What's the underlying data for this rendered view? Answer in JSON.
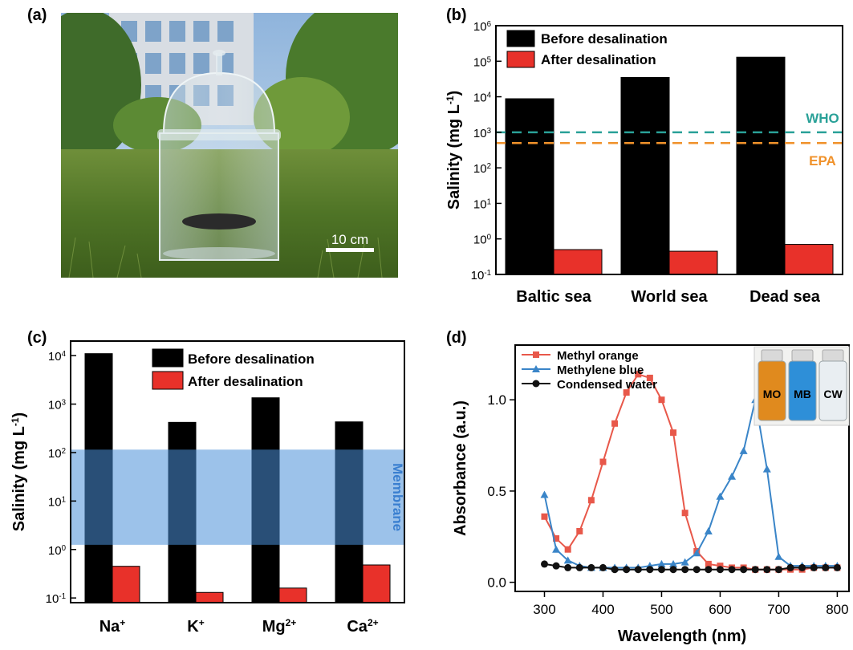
{
  "panel_labels": {
    "a": "(a)",
    "b": "(b)",
    "c": "(c)",
    "d": "(d)"
  },
  "photo": {
    "scale_label": "10 cm"
  },
  "chart_data": [
    {
      "panel": "b",
      "type": "bar",
      "scale": "log",
      "ylabel": "Salinity (mg L-1)",
      "ylim": [
        0.1,
        1000000
      ],
      "categories": [
        "Baltic sea",
        "World sea",
        "Dead sea"
      ],
      "legend_position": "top-left",
      "series": [
        {
          "name": "Before desalination",
          "color": "#000000",
          "values": [
            8800,
            35000,
            130000
          ]
        },
        {
          "name": "After desalination",
          "color": "#e8312a",
          "values": [
            0.5,
            0.45,
            0.7
          ]
        }
      ],
      "reference_lines": [
        {
          "label": "WHO",
          "value": 1000,
          "color": "#2aa198"
        },
        {
          "label": "EPA",
          "value": 500,
          "color": "#f0922b"
        }
      ]
    },
    {
      "panel": "c",
      "type": "bar",
      "scale": "log",
      "ylabel": "Salinity (mg L-1)",
      "ylim": [
        0.08,
        20000
      ],
      "categories": [
        "Na+",
        "K+",
        "Mg2+",
        "Ca2+"
      ],
      "legend_position": "top-right",
      "series": [
        {
          "name": "Before desalination",
          "color": "#000000",
          "values": [
            11000,
            420,
            1350,
            430
          ]
        },
        {
          "name": "After desalination",
          "color": "#e8312a",
          "values": [
            0.45,
            0.13,
            0.16,
            0.48
          ]
        }
      ],
      "band": {
        "label": "Membrane",
        "range": [
          1.25,
          115
        ],
        "color": "#4a90d9"
      }
    },
    {
      "panel": "d",
      "type": "line",
      "xlabel": "Wavelength (nm)",
      "ylabel": "Absorbance (a.u.)",
      "xlim": [
        250,
        820
      ],
      "ylim": [
        -0.05,
        1.3
      ],
      "xticks": [
        300,
        400,
        500,
        600,
        700,
        800
      ],
      "yticks": [
        0.0,
        0.5,
        1.0
      ],
      "legend_position": "top-left",
      "series": [
        {
          "name": "Methyl orange",
          "color": "#e8584a",
          "marker": "square",
          "x": [
            300,
            320,
            340,
            360,
            380,
            400,
            420,
            440,
            460,
            480,
            500,
            520,
            540,
            560,
            580,
            600,
            620,
            640,
            660,
            680,
            700,
            720,
            740,
            760,
            780,
            800
          ],
          "y": [
            0.36,
            0.24,
            0.18,
            0.28,
            0.45,
            0.66,
            0.87,
            1.04,
            1.14,
            1.12,
            1.0,
            0.82,
            0.38,
            0.17,
            0.1,
            0.09,
            0.08,
            0.08,
            0.07,
            0.07,
            0.07,
            0.07,
            0.07,
            0.08,
            0.08,
            0.08
          ]
        },
        {
          "name": "Methylene blue",
          "color": "#3a85c8",
          "marker": "triangle",
          "x": [
            300,
            320,
            340,
            360,
            380,
            400,
            420,
            440,
            460,
            480,
            500,
            520,
            540,
            560,
            580,
            600,
            620,
            640,
            660,
            680,
            700,
            720,
            740,
            760,
            780,
            800
          ],
          "y": [
            0.48,
            0.18,
            0.12,
            0.09,
            0.08,
            0.08,
            0.08,
            0.08,
            0.08,
            0.09,
            0.1,
            0.1,
            0.11,
            0.16,
            0.28,
            0.47,
            0.58,
            0.72,
            1.0,
            0.62,
            0.14,
            0.09,
            0.09,
            0.09,
            0.09,
            0.09
          ]
        },
        {
          "name": "Condensed water",
          "color": "#111111",
          "marker": "circle",
          "x": [
            300,
            320,
            340,
            360,
            380,
            400,
            420,
            440,
            460,
            480,
            500,
            520,
            540,
            560,
            580,
            600,
            620,
            640,
            660,
            680,
            700,
            720,
            740,
            760,
            780,
            800
          ],
          "y": [
            0.1,
            0.09,
            0.08,
            0.08,
            0.08,
            0.08,
            0.07,
            0.07,
            0.07,
            0.07,
            0.07,
            0.07,
            0.07,
            0.07,
            0.07,
            0.07,
            0.07,
            0.07,
            0.07,
            0.07,
            0.07,
            0.08,
            0.08,
            0.08,
            0.08,
            0.08
          ]
        }
      ],
      "inset": {
        "vials": [
          {
            "label": "MO",
            "color": "#e08a1e"
          },
          {
            "label": "MB",
            "color": "#2e8fd8"
          },
          {
            "label": "CW",
            "color": "#e9eef2"
          }
        ]
      }
    }
  ]
}
